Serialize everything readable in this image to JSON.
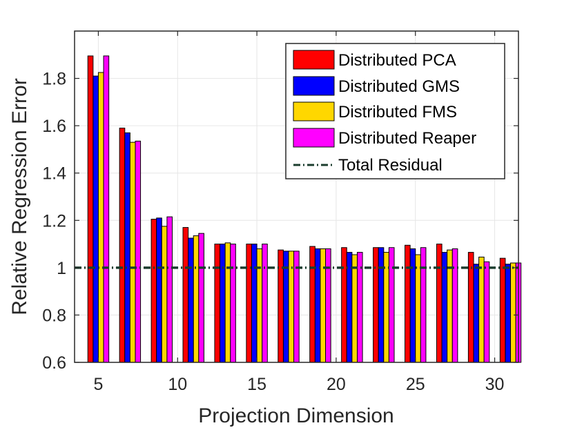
{
  "chart_data": {
    "type": "bar",
    "xlabel": "Projection Dimension",
    "ylabel": "Relative Regression Error",
    "xlim": [
      3.5,
      31.5
    ],
    "ylim": [
      0.6,
      2.0
    ],
    "xticks": [
      5,
      10,
      15,
      20,
      25,
      30
    ],
    "yticks": [
      0.6,
      0.8,
      1,
      1.2,
      1.4,
      1.6,
      1.8
    ],
    "ytick_labels": [
      "0.6",
      "0.8",
      "1",
      "1.2",
      "1.4",
      "1.6",
      "1.8"
    ],
    "xtick_labels": [
      "5",
      "10",
      "15",
      "20",
      "25",
      "30"
    ],
    "grid": true,
    "legend_position": "top-right",
    "categories": [
      5,
      7,
      9,
      11,
      13,
      15,
      17,
      19,
      21,
      23,
      25,
      27,
      29,
      31
    ],
    "series": [
      {
        "name": "Distributed PCA",
        "color": "#ff0000",
        "values": [
          1.895,
          1.59,
          1.205,
          1.17,
          1.1,
          1.1,
          1.075,
          1.09,
          1.085,
          1.085,
          1.095,
          1.1,
          1.065,
          1.04
        ]
      },
      {
        "name": "Distributed GMS",
        "color": "#0000ff",
        "values": [
          1.81,
          1.57,
          1.21,
          1.125,
          1.1,
          1.1,
          1.07,
          1.08,
          1.065,
          1.085,
          1.08,
          1.065,
          1.015,
          1.015
        ]
      },
      {
        "name": "Distributed FMS",
        "color": "#ffd700",
        "values": [
          1.825,
          1.53,
          1.175,
          1.135,
          1.105,
          1.08,
          1.07,
          1.08,
          1.055,
          1.065,
          1.055,
          1.075,
          1.045,
          1.02
        ]
      },
      {
        "name": "Distributed Reaper",
        "color": "#ff00ff",
        "values": [
          1.895,
          1.535,
          1.215,
          1.145,
          1.1,
          1.1,
          1.07,
          1.08,
          1.065,
          1.085,
          1.085,
          1.08,
          1.025,
          1.02
        ]
      }
    ],
    "reference_line": {
      "name": "Total Residual",
      "value": 1.0,
      "color": "#1b3d2e",
      "style": "dash-dot"
    }
  }
}
